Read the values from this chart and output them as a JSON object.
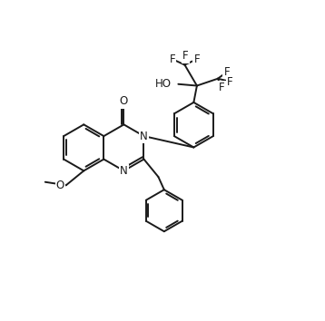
{
  "background_color": "#ffffff",
  "line_color": "#1a1a1a",
  "line_width": 1.4,
  "font_size": 8.5,
  "figsize": [
    3.58,
    3.54
  ],
  "dpi": 100,
  "xlim": [
    0,
    10
  ],
  "ylim": [
    0,
    10
  ]
}
